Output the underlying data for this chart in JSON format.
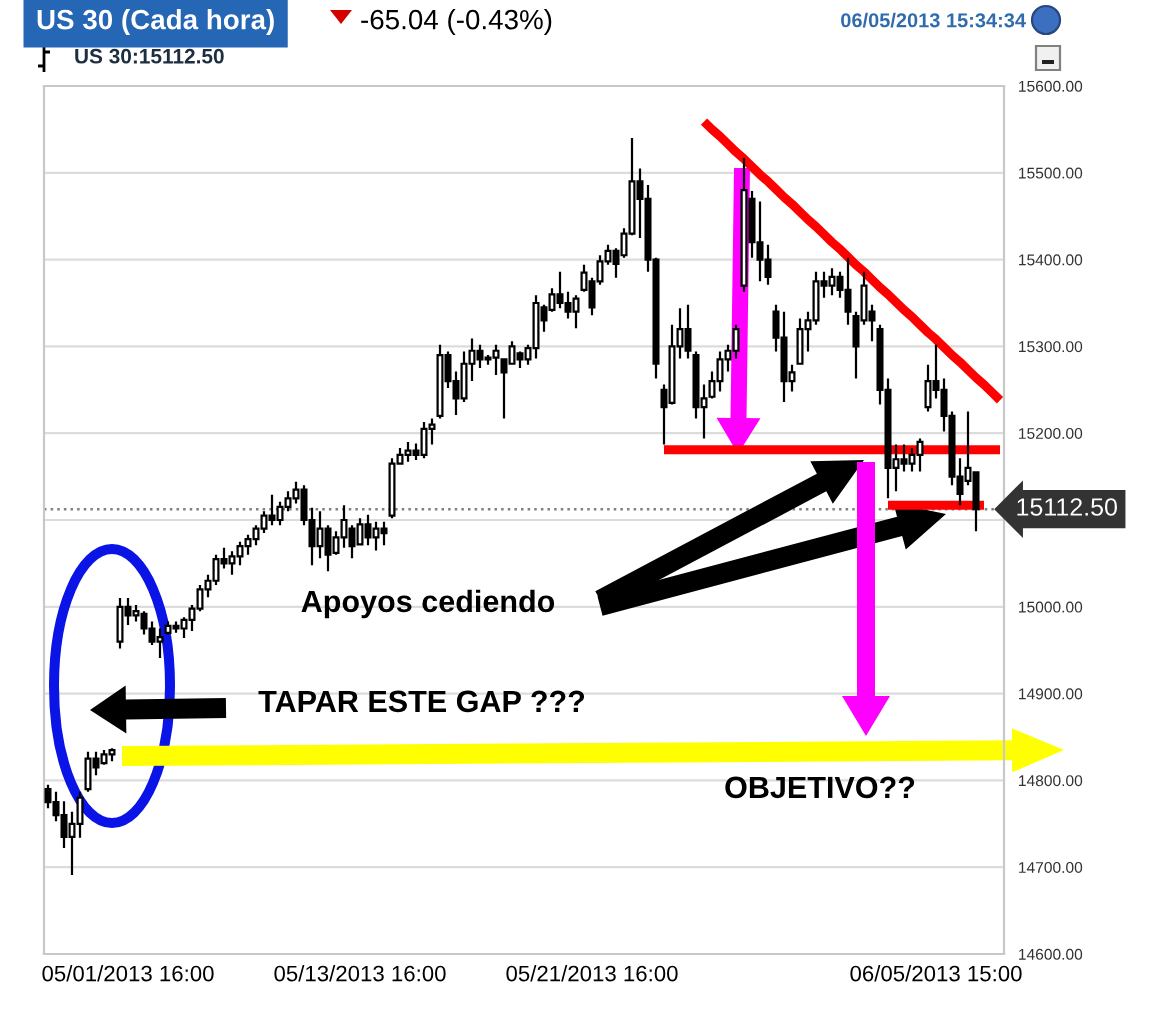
{
  "chart_data": {
    "type": "candlestick",
    "title": "US 30 (Cada hora)",
    "subtitle": "US 30:15112.50",
    "annotations": [
      "-65.04 (-0.43%)",
      "06/05/2013 15:34:34",
      "Apoyos cediendo",
      "TAPAR ESTE GAP ???",
      "OBJETIVO??"
    ],
    "categories": [
      null,
      null,
      null,
      null,
      null,
      null,
      null,
      null,
      null,
      null,
      "05/01/2013 16:00",
      null,
      null,
      null,
      null,
      null,
      null,
      null,
      null,
      null,
      null,
      null,
      null,
      null,
      null,
      null,
      null,
      null,
      null,
      null,
      null,
      null,
      null,
      null,
      null,
      null,
      null,
      null,
      null,
      "05/13/2013 16:00",
      null,
      null,
      null,
      null,
      null,
      null,
      null,
      null,
      null,
      null,
      null,
      null,
      null,
      null,
      null,
      null,
      null,
      null,
      null,
      null,
      null,
      null,
      null,
      null,
      null,
      null,
      null,
      null,
      "05/21/2013 16:00",
      null,
      null,
      null,
      null,
      null,
      null,
      null,
      null,
      null,
      null,
      null,
      null,
      null,
      null,
      null,
      null,
      null,
      null,
      null,
      null,
      null,
      null,
      null,
      null,
      null,
      null,
      null,
      null,
      null,
      null,
      null,
      null,
      null,
      null,
      null,
      null,
      null,
      null,
      null,
      null,
      null,
      null,
      "06/05/2013 15:00",
      null,
      null,
      null,
      null,
      null,
      null,
      null,
      null
    ],
    "series": [
      {
        "color": "#000000",
        "ohlc": [
          [
            14790,
            14795,
            14768,
            14775
          ],
          [
            14775,
            14787,
            14753,
            14760
          ],
          [
            14760,
            14776,
            14722,
            14735
          ],
          [
            14735,
            14764,
            14691,
            14750
          ],
          [
            14750,
            14787,
            14734,
            14780
          ],
          [
            14790,
            14833,
            14787,
            14825
          ],
          [
            14825,
            14833,
            14806,
            14815
          ],
          [
            14820,
            14835,
            14818,
            14830
          ],
          [
            14830,
            14837,
            14822,
            14835
          ],
          [
            14960,
            15010,
            14952,
            15000
          ],
          [
            15000,
            15010,
            14979,
            14990
          ],
          [
            14990,
            15002,
            14983,
            14995
          ],
          [
            14992,
            14995,
            14968,
            14975
          ],
          [
            14975,
            14983,
            14956,
            14960
          ],
          [
            14960,
            14975,
            14941,
            14965
          ],
          [
            14970,
            14983,
            14968,
            14978
          ],
          [
            14978,
            14983,
            14970,
            14975
          ],
          [
            14975,
            14988,
            14964,
            14985
          ],
          [
            14985,
            15002,
            14972,
            14998
          ],
          [
            14998,
            15025,
            14995,
            15020
          ],
          [
            15020,
            15037,
            15011,
            15030
          ],
          [
            15030,
            15060,
            15025,
            15055
          ],
          [
            15055,
            15068,
            15044,
            15050
          ],
          [
            15050,
            15064,
            15037,
            15058
          ],
          [
            15058,
            15075,
            15048,
            15070
          ],
          [
            15070,
            15083,
            15060,
            15078
          ],
          [
            15078,
            15094,
            15071,
            15090
          ],
          [
            15090,
            15110,
            15085,
            15105
          ],
          [
            15105,
            15129,
            15094,
            15100
          ],
          [
            15100,
            15121,
            15094,
            15115
          ],
          [
            15115,
            15133,
            15110,
            15125
          ],
          [
            15125,
            15144,
            15119,
            15135
          ],
          [
            15135,
            15140,
            15094,
            15100
          ],
          [
            15100,
            15114,
            15048,
            15070
          ],
          [
            15070,
            15110,
            15056,
            15090
          ],
          [
            15090,
            15094,
            15041,
            15060
          ],
          [
            15062,
            15087,
            15060,
            15080
          ],
          [
            15080,
            15117,
            15068,
            15100
          ],
          [
            15090,
            15094,
            15056,
            15070
          ],
          [
            15072,
            15102,
            15071,
            15095
          ],
          [
            15095,
            15106,
            15071,
            15080
          ],
          [
            15080,
            15098,
            15065,
            15090
          ],
          [
            15090,
            15098,
            15071,
            15085
          ],
          [
            15105,
            15171,
            15102,
            15165
          ],
          [
            15165,
            15183,
            15164,
            15175
          ],
          [
            15175,
            15190,
            15167,
            15180
          ],
          [
            15180,
            15188,
            15169,
            15175
          ],
          [
            15175,
            15213,
            15171,
            15205
          ],
          [
            15205,
            15217,
            15187,
            15210
          ],
          [
            15220,
            15302,
            15217,
            15290
          ],
          [
            15290,
            15294,
            15252,
            15260
          ],
          [
            15260,
            15271,
            15221,
            15240
          ],
          [
            15240,
            15294,
            15236,
            15280
          ],
          [
            15280,
            15309,
            15260,
            15295
          ],
          [
            15295,
            15302,
            15275,
            15285
          ],
          [
            15285,
            15290,
            15279,
            15287
          ],
          [
            15287,
            15302,
            15267,
            15295
          ],
          [
            15285,
            15286,
            15217,
            15270
          ],
          [
            15280,
            15306,
            15279,
            15300
          ],
          [
            15292,
            15294,
            15275,
            15285
          ],
          [
            15285,
            15302,
            15279,
            15298
          ],
          [
            15298,
            15359,
            15286,
            15350
          ],
          [
            15345,
            15348,
            15317,
            15330
          ],
          [
            15342,
            15367,
            15340,
            15360
          ],
          [
            15360,
            15386,
            15344,
            15350
          ],
          [
            15350,
            15363,
            15332,
            15340
          ],
          [
            15340,
            15359,
            15321,
            15355
          ],
          [
            15365,
            15394,
            15363,
            15385
          ],
          [
            15375,
            15379,
            15336,
            15345
          ],
          [
            15375,
            15405,
            15371,
            15398
          ],
          [
            15398,
            15417,
            15394,
            15410
          ],
          [
            15410,
            15413,
            15379,
            15395
          ],
          [
            15405,
            15436,
            15402,
            15430
          ],
          [
            15430,
            15540,
            15428,
            15490
          ],
          [
            15490,
            15505,
            15425,
            15470
          ],
          [
            15470,
            15486,
            15386,
            15400
          ],
          [
            15400,
            15402,
            15263,
            15280
          ],
          [
            15250,
            15256,
            15187,
            15230
          ],
          [
            15235,
            15325,
            15233,
            15300
          ],
          [
            15300,
            15344,
            15286,
            15320
          ],
          [
            15320,
            15348,
            15286,
            15295
          ],
          [
            15290,
            15294,
            15217,
            15230
          ],
          [
            15230,
            15256,
            15194,
            15240
          ],
          [
            15242,
            15271,
            15240,
            15260
          ],
          [
            15260,
            15294,
            15248,
            15285
          ],
          [
            15285,
            15302,
            15271,
            15295
          ],
          [
            15295,
            15325,
            15286,
            15320
          ],
          [
            15370,
            15517,
            15363,
            15480
          ],
          [
            15470,
            15479,
            15402,
            15420
          ],
          [
            15420,
            15467,
            15375,
            15400
          ],
          [
            15400,
            15417,
            15371,
            15380
          ],
          [
            15340,
            15348,
            15294,
            15310
          ],
          [
            15310,
            15340,
            15236,
            15260
          ],
          [
            15260,
            15279,
            15248,
            15270
          ],
          [
            15280,
            15332,
            15279,
            15320
          ],
          [
            15320,
            15340,
            15294,
            15330
          ],
          [
            15330,
            15386,
            15325,
            15375
          ],
          [
            15375,
            15386,
            15356,
            15370
          ],
          [
            15370,
            15390,
            15359,
            15380
          ],
          [
            15380,
            15386,
            15356,
            15365
          ],
          [
            15365,
            15402,
            15325,
            15340
          ],
          [
            15335,
            15340,
            15263,
            15300
          ],
          [
            15330,
            15386,
            15325,
            15370
          ],
          [
            15340,
            15348,
            15306,
            15330
          ],
          [
            15320,
            15325,
            15233,
            15250
          ],
          [
            15250,
            15263,
            15125,
            15160
          ],
          [
            15160,
            15187,
            15133,
            15170
          ],
          [
            15170,
            15187,
            15156,
            15165
          ],
          [
            15165,
            15183,
            15156,
            15175
          ],
          [
            15175,
            15194,
            15156,
            15190
          ],
          [
            15230,
            15279,
            15225,
            15260
          ],
          [
            15260,
            15302,
            15240,
            15250
          ],
          [
            15250,
            15263,
            15202,
            15220
          ],
          [
            15220,
            15225,
            15140,
            15150
          ],
          [
            15150,
            15171,
            15117,
            15130
          ],
          [
            15145,
            15225,
            15140,
            15160
          ],
          [
            15155,
            15156,
            15087,
            15112.5
          ],
          null,
          null,
          null
        ]
      },
      {
        "type": "line",
        "color": "#ff0000",
        "values": [
          null,
          null,
          null,
          null,
          null,
          null,
          null,
          null,
          null,
          null,
          null,
          null,
          null,
          null,
          null,
          null,
          null,
          null,
          null,
          null,
          null,
          null,
          null,
          null,
          null,
          null,
          null,
          null,
          null,
          null,
          null,
          null,
          null,
          null,
          null,
          null,
          null,
          null,
          null,
          null,
          null,
          null,
          null,
          null,
          null,
          null,
          null,
          null,
          null,
          null,
          null,
          null,
          null,
          null,
          null,
          null,
          null,
          null,
          null,
          null,
          null,
          null,
          null,
          null,
          null,
          null,
          null,
          null,
          null,
          null,
          null,
          null,
          null,
          null,
          null,
          null,
          null,
          null,
          null,
          null,
          null,
          null,
          15559,
          15550,
          15542,
          15533,
          15524,
          15516,
          15507,
          15498,
          15490,
          15481,
          15472,
          15464,
          15455,
          15446,
          15438,
          15429,
          15420,
          15412,
          15403,
          15394,
          15386,
          15377,
          15368,
          15360,
          15351,
          15342,
          15334,
          15325,
          15316,
          15308,
          15299,
          15290,
          15282,
          15273,
          15264,
          15256,
          15247,
          15238
        ]
      },
      {
        "type": "line",
        "color": "#ff0000",
        "values": [
          null,
          null,
          null,
          null,
          null,
          null,
          null,
          null,
          null,
          null,
          null,
          null,
          null,
          null,
          null,
          null,
          null,
          null,
          null,
          null,
          null,
          null,
          null,
          null,
          null,
          null,
          null,
          null,
          null,
          null,
          null,
          null,
          null,
          null,
          null,
          null,
          null,
          null,
          null,
          null,
          null,
          null,
          null,
          null,
          null,
          null,
          null,
          null,
          null,
          null,
          null,
          null,
          null,
          null,
          null,
          null,
          null,
          null,
          null,
          null,
          null,
          null,
          null,
          null,
          null,
          null,
          null,
          null,
          null,
          null,
          null,
          null,
          null,
          null,
          null,
          null,
          null,
          15181,
          15181,
          15181,
          15181,
          15181,
          15181,
          15181,
          15181,
          15181,
          15181,
          15181,
          15181,
          15181,
          15181,
          15181,
          15181,
          15181,
          15181,
          15181,
          15181,
          15181,
          15181,
          15181,
          15181,
          15181,
          15181,
          15181,
          15181,
          15181,
          15181,
          15181,
          15181,
          15181,
          15181,
          15181,
          15181,
          15181,
          15181,
          15181,
          15181,
          15181,
          15181,
          15181
        ]
      },
      {
        "type": "line",
        "color": "#ff0000",
        "values": [
          null,
          null,
          null,
          null,
          null,
          null,
          null,
          null,
          null,
          null,
          null,
          null,
          null,
          null,
          null,
          null,
          null,
          null,
          null,
          null,
          null,
          null,
          null,
          null,
          null,
          null,
          null,
          null,
          null,
          null,
          null,
          null,
          null,
          null,
          null,
          null,
          null,
          null,
          null,
          null,
          null,
          null,
          null,
          null,
          null,
          null,
          null,
          null,
          null,
          null,
          null,
          null,
          null,
          null,
          null,
          null,
          null,
          null,
          null,
          null,
          null,
          null,
          null,
          null,
          null,
          null,
          null,
          null,
          null,
          null,
          null,
          null,
          null,
          null,
          null,
          null,
          null,
          null,
          null,
          null,
          null,
          null,
          null,
          null,
          null,
          null,
          null,
          null,
          null,
          null,
          null,
          null,
          null,
          null,
          null,
          null,
          null,
          null,
          null,
          null,
          null,
          null,
          null,
          null,
          null,
          15117,
          15117,
          15117,
          15117,
          15117,
          15117,
          15117,
          15117,
          15117,
          15117,
          15117,
          15117,
          15117,
          null,
          null
        ]
      }
    ],
    "ylim": [
      14600,
      15600
    ],
    "yticks": [
      {
        "value": 14600,
        "label": "14600.00"
      },
      {
        "value": 14700,
        "label": "14700.00"
      },
      {
        "value": 14800,
        "label": "14800.00"
      },
      {
        "value": 14900,
        "label": "14900.00"
      },
      {
        "value": 15000,
        "label": "15000.00"
      },
      {
        "value": 15100,
        "label": null
      },
      {
        "value": 15200,
        "label": "15200.00"
      },
      {
        "value": 15300,
        "label": "15300.00"
      },
      {
        "value": 15400,
        "label": "15400.00"
      },
      {
        "value": 15500,
        "label": "15500.00"
      },
      {
        "value": 15600,
        "label": "15600.00"
      }
    ],
    "grid": "y",
    "ref_lines": [
      {
        "axis": "y",
        "value": 15112.5,
        "label": "15112.50",
        "line_style": "dotted",
        "color": "#808080"
      }
    ]
  }
}
